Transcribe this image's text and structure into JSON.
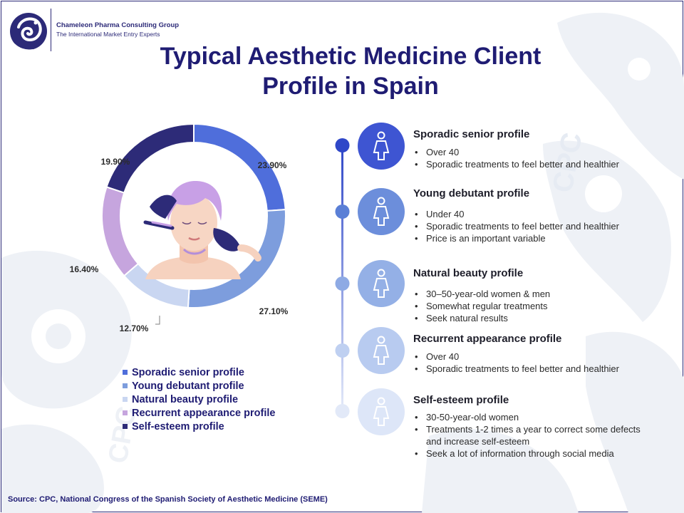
{
  "brand": {
    "name": "Chameleon Pharma Consulting Group",
    "tagline": "The International Market Entry Experts"
  },
  "title": {
    "line1": "Typical Aesthetic Medicine Client",
    "line2": "Profile in Spain"
  },
  "colors": {
    "sporadic_senior": "#4f6edb",
    "young_debutant": "#7d9ddd",
    "natural_beauty": "#c9d6f1",
    "recurrent_appearance": "#c6a5de",
    "self_esteem": "#2d2b78"
  },
  "chart_data": {
    "type": "pie",
    "title": "",
    "donut": true,
    "slices": [
      {
        "name": "Sporadic senior profile",
        "value": 23.9,
        "label": "23.90%",
        "color": "#4f6edb"
      },
      {
        "name": "Young debutant profile",
        "value": 27.1,
        "label": "27.10%",
        "color": "#7d9ddd"
      },
      {
        "name": "Natural beauty profile",
        "value": 12.7,
        "label": "12.70%",
        "color": "#c9d6f1"
      },
      {
        "name": "Recurrent appearance profile",
        "value": 16.4,
        "label": "16.40%",
        "color": "#c6a5de"
      },
      {
        "name": "Self-esteem profile",
        "value": 19.9,
        "label": "19.90%",
        "color": "#2d2b78"
      }
    ],
    "legend_placement": "bottom"
  },
  "profiles": [
    {
      "title": "Sporadic senior profile",
      "icon": "woman-icon",
      "color": "#3e55d2",
      "bullets": [
        "Over 40",
        "Sporadic treatments to feel better and healthier"
      ]
    },
    {
      "title": "Young debutant profile",
      "icon": "woman-icon",
      "color": "#6c8edb",
      "bullets": [
        "Under 40",
        "Sporadic treatments to feel better and healthier",
        "Price is an important variable"
      ]
    },
    {
      "title": "Natural beauty profile",
      "icon": "woman-icon",
      "color": "#94b0e6",
      "bullets": [
        "30–50-year-old women & men",
        "Somewhat regular treatments",
        "Seek natural results"
      ]
    },
    {
      "title": "Recurrent appearance profile",
      "icon": "woman-icon",
      "color": "#b8cbf0",
      "bullets": [
        "Over 40",
        "Sporadic treatments to feel better and healthier"
      ]
    },
    {
      "title": "Self-esteem profile",
      "icon": "woman-icon",
      "color": "#dde6f8",
      "bullets": [
        "30-50-year-old women",
        "Treatments 1-2 times a year to correct some defects and increase self-esteem",
        "Seek a lot of information through social media"
      ]
    }
  ],
  "source": "Source: CPC, National Congress of the Spanish Society of Aesthetic Medicine (SEME)"
}
